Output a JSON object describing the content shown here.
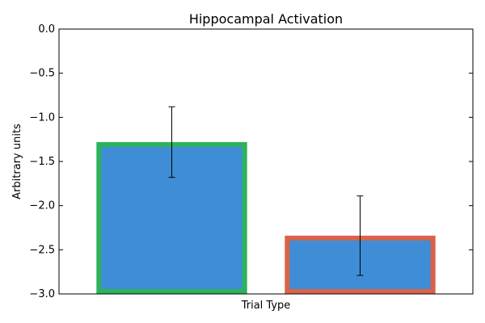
{
  "chart_data": {
    "type": "bar",
    "title": "Hippocampal Activation",
    "xlabel": "Trial Type",
    "ylabel": "Arbitrary units",
    "ylim": [
      -3.0,
      0.0
    ],
    "yticks": [
      0.0,
      -0.5,
      -1.0,
      -1.5,
      -2.0,
      -2.5,
      -3.0
    ],
    "ytick_labels": [
      "0.0",
      "−0.5",
      "−1.0",
      "−1.5",
      "−2.0",
      "−2.5",
      "−3.0"
    ],
    "grid": false,
    "bars": [
      {
        "value": -1.28,
        "error": 0.4,
        "fill_color": "#3f8dd6",
        "edge_color": "#2db35b"
      },
      {
        "value": -2.34,
        "error": 0.45,
        "fill_color": "#3f8dd6",
        "edge_color": "#d9634a"
      }
    ]
  }
}
